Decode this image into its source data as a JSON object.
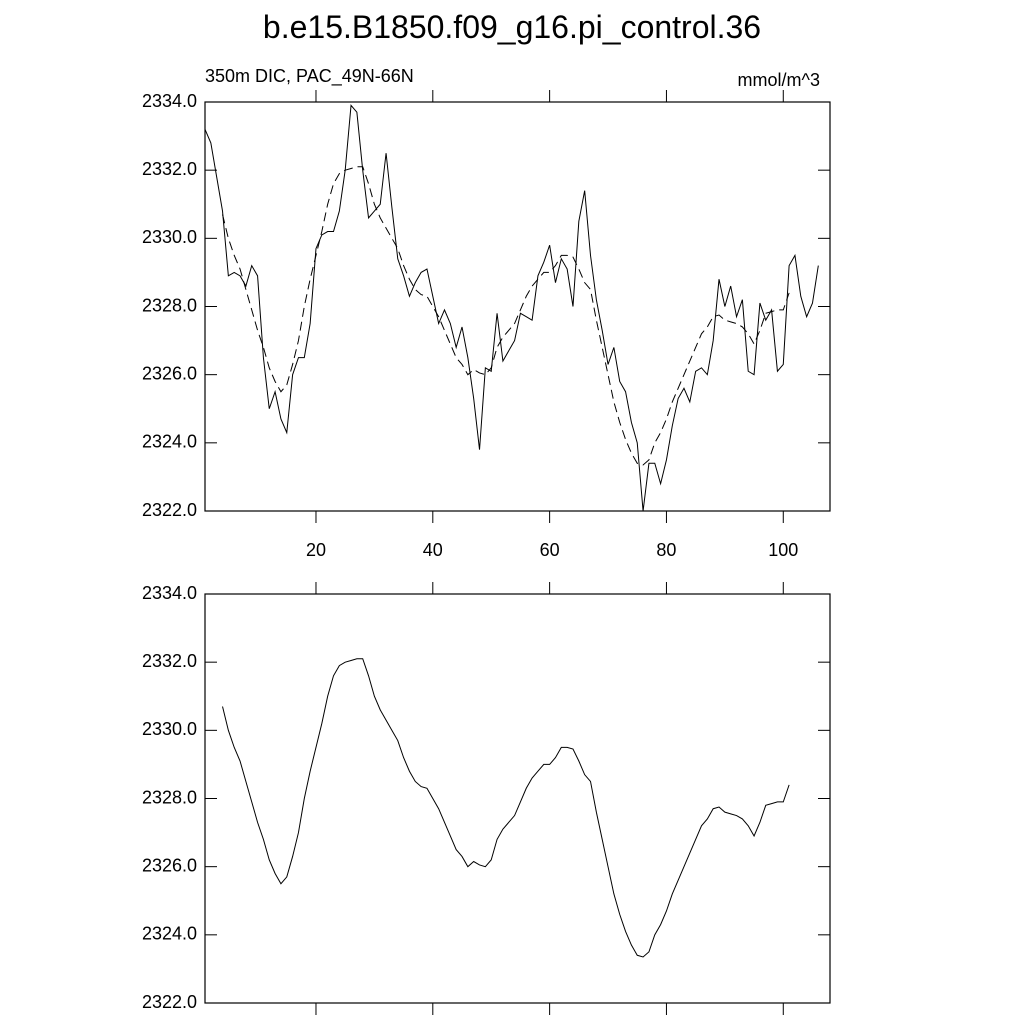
{
  "chart_data": [
    {
      "type": "line",
      "title": "b.e15.B1850.f09_g16.pi_control.36",
      "subtitle": "350m DIC, PAC_49N-66N",
      "units": "mmol/m^3",
      "x": [
        1,
        2,
        3,
        4,
        5,
        6,
        7,
        8,
        9,
        10,
        11,
        12,
        13,
        14,
        15,
        16,
        17,
        18,
        19,
        20,
        21,
        22,
        23,
        24,
        25,
        26,
        27,
        28,
        29,
        30,
        31,
        32,
        33,
        34,
        35,
        36,
        37,
        38,
        39,
        40,
        41,
        42,
        43,
        44,
        45,
        46,
        47,
        48,
        49,
        50,
        51,
        52,
        53,
        54,
        55,
        56,
        57,
        58,
        59,
        60,
        61,
        62,
        63,
        64,
        65,
        66,
        67,
        68,
        69,
        70,
        71,
        72,
        73,
        74,
        75,
        76,
        77,
        78,
        79,
        80,
        81,
        82,
        83,
        84,
        85,
        86,
        87,
        88,
        89,
        90,
        91,
        92,
        93,
        94,
        95,
        96,
        97,
        98,
        99,
        100,
        101,
        102,
        103,
        104,
        105,
        106
      ],
      "series": [
        {
          "color": "#000000",
          "dashed": false,
          "values": [
            2333.2,
            2332.8,
            2331.8,
            2330.8,
            2328.9,
            2329.0,
            2328.9,
            2328.6,
            2329.2,
            2328.9,
            2326.5,
            2325.0,
            2325.5,
            2324.7,
            2324.3,
            2326.0,
            2326.5,
            2326.5,
            2327.5,
            2329.7,
            2330.1,
            2330.2,
            2330.2,
            2330.8,
            2332.0,
            2333.9,
            2333.7,
            2332.0,
            2330.6,
            2330.8,
            2331.0,
            2332.5,
            2330.9,
            2329.4,
            2328.9,
            2328.3,
            2328.7,
            2329.0,
            2329.1,
            2328.3,
            2327.5,
            2327.9,
            2327.5,
            2326.8,
            2327.4,
            2326.5,
            2325.3,
            2323.8,
            2326.2,
            2326.1,
            2327.8,
            2326.4,
            2326.7,
            2327.0,
            2327.8,
            2327.7,
            2327.6,
            2328.9,
            2329.3,
            2329.8,
            2328.7,
            2329.4,
            2329.1,
            2328.0,
            2330.5,
            2331.4,
            2329.5,
            2328.2,
            2327.3,
            2326.3,
            2326.8,
            2325.8,
            2325.5,
            2324.6,
            2324.0,
            2322.0,
            2323.4,
            2323.4,
            2322.8,
            2323.5,
            2324.5,
            2325.3,
            2325.6,
            2325.2,
            2326.1,
            2326.2,
            2326.0,
            2327.0,
            2328.8,
            2328.0,
            2328.6,
            2327.7,
            2328.2,
            2326.1,
            2326.0,
            2328.1,
            2327.6,
            2327.9,
            2326.1,
            2326.3,
            2329.2,
            2329.5,
            2328.3,
            2327.7,
            2328.1,
            2329.2
          ]
        },
        {
          "color": "#000000",
          "dashed": true,
          "values": [
            null,
            null,
            null,
            2330.7,
            2330.0,
            2329.5,
            2329.1,
            2328.5,
            2327.9,
            2327.3,
            2326.8,
            2326.2,
            2325.8,
            2325.5,
            2325.7,
            2326.3,
            2327.0,
            2328.0,
            2328.8,
            2329.5,
            2330.2,
            2331.0,
            2331.6,
            2331.9,
            2332.0,
            2332.05,
            2332.1,
            2332.1,
            2331.6,
            2331.0,
            2330.6,
            2330.3,
            2330.0,
            2329.7,
            2329.2,
            2328.8,
            2328.5,
            2328.35,
            2328.3,
            2328.0,
            2327.7,
            2327.3,
            2326.9,
            2326.5,
            2326.3,
            2326.0,
            2326.15,
            2326.05,
            2326.0,
            2326.2,
            2326.8,
            2327.1,
            2327.3,
            2327.5,
            2327.9,
            2328.3,
            2328.6,
            2328.8,
            2329.0,
            2329.0,
            2329.2,
            2329.5,
            2329.5,
            2329.45,
            2329.1,
            2328.7,
            2328.5,
            2327.6,
            2326.8,
            2326.0,
            2325.2,
            2324.6,
            2324.1,
            2323.7,
            2323.4,
            2323.35,
            2323.5,
            2324.0,
            2324.3,
            2324.7,
            2325.2,
            2325.6,
            2326.0,
            2326.4,
            2326.8,
            2327.2,
            2327.4,
            2327.7,
            2327.75,
            2327.6,
            2327.55,
            2327.5,
            2327.4,
            2327.2,
            2326.9,
            2327.3,
            2327.8,
            2327.85,
            2327.9,
            2327.9,
            2328.4,
            null,
            null,
            null,
            null,
            null
          ]
        }
      ],
      "xlim": [
        1,
        108
      ],
      "xticks": [
        20,
        40,
        60,
        80,
        100
      ],
      "show_xtick_labels": true,
      "ylim": [
        2322,
        2334
      ],
      "yticks": [
        {
          "value": 2322,
          "label": "2322.0"
        },
        {
          "value": 2324,
          "label": "2324.0"
        },
        {
          "value": 2326,
          "label": "2326.0"
        },
        {
          "value": 2328,
          "label": "2328.0"
        },
        {
          "value": 2330,
          "label": "2330.0"
        },
        {
          "value": 2332,
          "label": "2332.0"
        },
        {
          "value": 2334,
          "label": "2334.0"
        }
      ]
    },
    {
      "type": "line",
      "x": [
        4,
        5,
        6,
        7,
        8,
        9,
        10,
        11,
        12,
        13,
        14,
        15,
        16,
        17,
        18,
        19,
        20,
        21,
        22,
        23,
        24,
        25,
        26,
        27,
        28,
        29,
        30,
        31,
        32,
        33,
        34,
        35,
        36,
        37,
        38,
        39,
        40,
        41,
        42,
        43,
        44,
        45,
        46,
        47,
        48,
        49,
        50,
        51,
        52,
        53,
        54,
        55,
        56,
        57,
        58,
        59,
        60,
        61,
        62,
        63,
        64,
        65,
        66,
        67,
        68,
        69,
        70,
        71,
        72,
        73,
        74,
        75,
        76,
        77,
        78,
        79,
        80,
        81,
        82,
        83,
        84,
        85,
        86,
        87,
        88,
        89,
        90,
        91,
        92,
        93,
        94,
        95,
        96,
        97,
        98,
        99,
        100,
        101
      ],
      "series": [
        {
          "color": "#000000",
          "dashed": false,
          "values": [
            2330.7,
            2330.0,
            2329.5,
            2329.1,
            2328.5,
            2327.9,
            2327.3,
            2326.8,
            2326.2,
            2325.8,
            2325.5,
            2325.7,
            2326.3,
            2327.0,
            2328.0,
            2328.8,
            2329.5,
            2330.2,
            2331.0,
            2331.6,
            2331.9,
            2332.0,
            2332.05,
            2332.1,
            2332.1,
            2331.6,
            2331.0,
            2330.6,
            2330.3,
            2330.0,
            2329.7,
            2329.2,
            2328.8,
            2328.5,
            2328.35,
            2328.3,
            2328.0,
            2327.7,
            2327.3,
            2326.9,
            2326.5,
            2326.3,
            2326.0,
            2326.15,
            2326.05,
            2326.0,
            2326.2,
            2326.8,
            2327.1,
            2327.3,
            2327.5,
            2327.9,
            2328.3,
            2328.6,
            2328.8,
            2329.0,
            2329.0,
            2329.2,
            2329.5,
            2329.5,
            2329.45,
            2329.1,
            2328.7,
            2328.5,
            2327.6,
            2326.8,
            2326.0,
            2325.2,
            2324.6,
            2324.1,
            2323.7,
            2323.4,
            2323.35,
            2323.5,
            2324.0,
            2324.3,
            2324.7,
            2325.2,
            2325.6,
            2326.0,
            2326.4,
            2326.8,
            2327.2,
            2327.4,
            2327.7,
            2327.75,
            2327.6,
            2327.55,
            2327.5,
            2327.4,
            2327.2,
            2326.9,
            2327.3,
            2327.8,
            2327.85,
            2327.9,
            2327.9,
            2328.4
          ]
        }
      ],
      "xlim": [
        1,
        108
      ],
      "xticks": [
        20,
        40,
        60,
        80,
        100
      ],
      "show_xtick_labels": false,
      "ylim": [
        2322,
        2334
      ],
      "yticks": [
        {
          "value": 2322,
          "label": "2322.0"
        },
        {
          "value": 2324,
          "label": "2324.0"
        },
        {
          "value": 2326,
          "label": "2326.0"
        },
        {
          "value": 2328,
          "label": "2328.0"
        },
        {
          "value": 2330,
          "label": "2330.0"
        },
        {
          "value": 2332,
          "label": "2332.0"
        },
        {
          "value": 2334,
          "label": "2334.0"
        }
      ]
    }
  ]
}
